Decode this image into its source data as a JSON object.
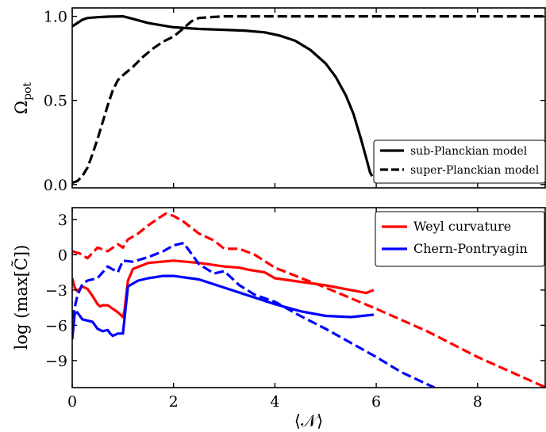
{
  "chart_data": [
    {
      "type": "line",
      "panel": "top",
      "title": "",
      "xlabel": "",
      "ylabel": "Ω_pot",
      "xlim": [
        0,
        9.35
      ],
      "ylim": [
        -0.02,
        1.05
      ],
      "yticks": [
        0.0,
        0.5,
        1.0
      ],
      "ytick_labels": [
        "0.0",
        "0.5",
        "1.0"
      ],
      "xticks": [
        0,
        2,
        4,
        6,
        8
      ],
      "show_xtick_labels": false,
      "grid": false,
      "legend_position": "bottom-right",
      "series": [
        {
          "name": "sub-Planckian model",
          "color": "#000000",
          "dash": "solid",
          "x": [
            0,
            0.1,
            0.2,
            0.3,
            0.5,
            0.7,
            1.0,
            1.2,
            1.5,
            2.0,
            2.5,
            3.0,
            3.4,
            3.8,
            4.1,
            4.4,
            4.7,
            5.0,
            5.2,
            5.4,
            5.55,
            5.7,
            5.8,
            5.88,
            5.92
          ],
          "y": [
            0.94,
            0.96,
            0.98,
            0.99,
            0.995,
            0.998,
            1.0,
            0.985,
            0.96,
            0.935,
            0.925,
            0.92,
            0.915,
            0.905,
            0.885,
            0.855,
            0.8,
            0.72,
            0.64,
            0.53,
            0.42,
            0.27,
            0.16,
            0.07,
            0.05
          ]
        },
        {
          "name": "super-Planckian model",
          "color": "#000000",
          "dash": "dashed",
          "x": [
            0,
            0.1,
            0.2,
            0.3,
            0.4,
            0.5,
            0.6,
            0.7,
            0.8,
            0.9,
            1.0,
            1.2,
            1.4,
            1.6,
            1.8,
            2.0,
            2.2,
            2.35,
            2.5,
            2.7,
            3.0,
            4.0,
            5.0,
            6.0,
            7.0,
            8.0,
            9.35
          ],
          "y": [
            0.01,
            0.02,
            0.05,
            0.1,
            0.18,
            0.27,
            0.37,
            0.47,
            0.56,
            0.62,
            0.65,
            0.7,
            0.76,
            0.81,
            0.85,
            0.88,
            0.93,
            0.97,
            0.99,
            0.995,
            1.0,
            1.0,
            1.0,
            1.0,
            1.0,
            1.0,
            1.0
          ]
        }
      ]
    },
    {
      "type": "line",
      "panel": "bottom",
      "title": "",
      "xlabel": "⟨𝒩⟩",
      "ylabel": "log(max[C̃])",
      "xlim": [
        0,
        9.35
      ],
      "ylim": [
        -11.3,
        4.0
      ],
      "yticks": [
        3,
        0,
        -3,
        -6,
        -9
      ],
      "ytick_labels": [
        "3",
        "0",
        "−3",
        "−6",
        "−9"
      ],
      "xticks": [
        0,
        2,
        4,
        6,
        8
      ],
      "xtick_labels": [
        "0",
        "2",
        "4",
        "6",
        "8"
      ],
      "grid": false,
      "legend_position": "top-right",
      "series": [
        {
          "name": "Weyl curvature",
          "legend": true,
          "color": "#ff0000",
          "dash": "solid",
          "x": [
            0,
            0.05,
            0.1,
            0.2,
            0.3,
            0.4,
            0.5,
            0.55,
            0.6,
            0.7,
            0.8,
            0.9,
            1.0,
            1.03,
            1.1,
            1.2,
            1.5,
            2.0,
            2.5,
            3.0,
            3.3,
            3.5,
            3.8,
            4.0,
            4.5,
            5.0,
            5.5,
            5.8,
            5.95
          ],
          "y": [
            -2.0,
            -2.8,
            -3.1,
            -2.7,
            -2.9,
            -3.5,
            -4.2,
            -4.4,
            -4.3,
            -4.3,
            -4.6,
            -4.9,
            -5.3,
            -4.8,
            -2.2,
            -1.2,
            -0.7,
            -0.5,
            -0.7,
            -1.0,
            -1.1,
            -1.3,
            -1.5,
            -2.0,
            -2.3,
            -2.6,
            -3.0,
            -3.25,
            -3.0
          ]
        },
        {
          "name": "Weyl curvature (dashed)",
          "legend": false,
          "color": "#ff0000",
          "dash": "dashed",
          "x": [
            0,
            0.15,
            0.3,
            0.5,
            0.7,
            0.9,
            1.0,
            1.1,
            1.3,
            1.5,
            1.7,
            1.85,
            2.0,
            2.2,
            2.5,
            2.8,
            3.0,
            3.3,
            3.6,
            4.0,
            5.0,
            6.0,
            7.0,
            8.0,
            9.35
          ],
          "y": [
            0.3,
            0.1,
            -0.3,
            0.6,
            0.3,
            0.9,
            0.6,
            1.3,
            1.8,
            2.5,
            3.1,
            3.5,
            3.3,
            2.8,
            1.8,
            1.2,
            0.5,
            0.5,
            0.0,
            -1.1,
            -2.8,
            -4.6,
            -6.5,
            -8.7,
            -11.3
          ]
        },
        {
          "name": "Chern-Pontryagin",
          "legend": true,
          "color": "#0000ff",
          "dash": "solid",
          "x": [
            0,
            0.05,
            0.1,
            0.2,
            0.3,
            0.4,
            0.5,
            0.6,
            0.7,
            0.75,
            0.8,
            0.9,
            1.0,
            1.03,
            1.1,
            1.3,
            1.5,
            1.8,
            2.0,
            2.5,
            3.0,
            3.5,
            4.0,
            4.5,
            5.0,
            5.5,
            5.95
          ],
          "y": [
            -7.2,
            -5.0,
            -4.9,
            -5.5,
            -5.6,
            -5.7,
            -6.3,
            -6.5,
            -6.4,
            -6.7,
            -6.9,
            -6.7,
            -6.7,
            -5.5,
            -2.7,
            -2.2,
            -2.0,
            -1.8,
            -1.8,
            -2.1,
            -2.8,
            -3.5,
            -4.2,
            -4.8,
            -5.2,
            -5.3,
            -5.1
          ]
        },
        {
          "name": "Chern-Pontryagin (dashed)",
          "legend": false,
          "color": "#0000ff",
          "dash": "dashed",
          "x": [
            0,
            0.1,
            0.2,
            0.3,
            0.5,
            0.7,
            0.9,
            1.0,
            1.2,
            1.5,
            1.8,
            2.0,
            2.2,
            2.5,
            2.8,
            3.0,
            3.3,
            3.6,
            4.0,
            4.5,
            5.0,
            5.5,
            6.0,
            6.5,
            7.15
          ],
          "y": [
            -5.5,
            -3.5,
            -2.5,
            -2.2,
            -2.0,
            -1.0,
            -1.5,
            -0.5,
            -0.6,
            -0.2,
            0.3,
            0.8,
            1.0,
            -0.8,
            -1.6,
            -1.4,
            -2.6,
            -3.4,
            -4.0,
            -5.2,
            -6.3,
            -7.5,
            -8.7,
            -10.0,
            -11.3
          ]
        }
      ]
    }
  ]
}
